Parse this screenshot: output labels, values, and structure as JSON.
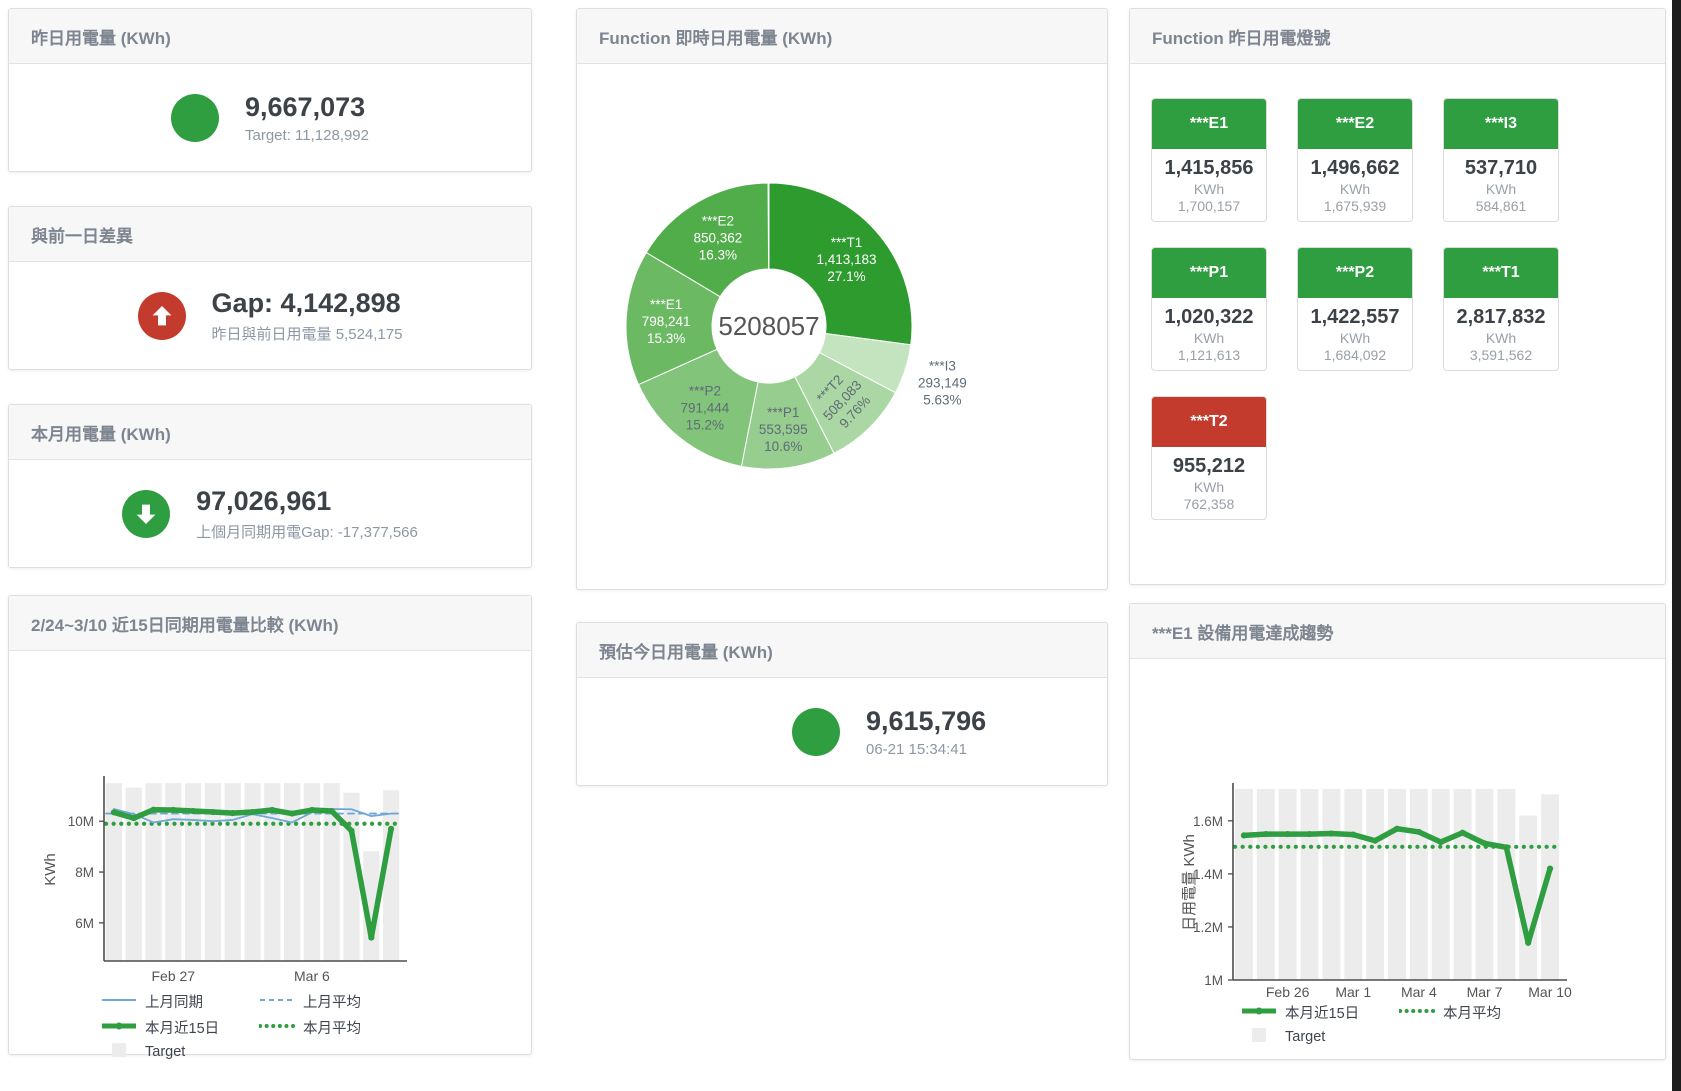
{
  "colors": {
    "green": "#2f9e41",
    "red": "#c23b2c",
    "blue": "#6ea8d8",
    "target_bar": "#ececec",
    "axis": "#4d4d4d",
    "tick_text": "#555555"
  },
  "stat_cards": [
    {
      "title": "昨日用電量 (KWh)",
      "indicator": "circle",
      "indicator_color": "#2f9e41",
      "value": "9,667,073",
      "subtitle": "Target: 11,128,992"
    },
    {
      "title": "與前一日差異",
      "indicator": "arrow-up",
      "indicator_color": "#c23b2c",
      "value": "Gap: 4,142,898",
      "subtitle": "昨日與前日用電量 5,524,175"
    },
    {
      "title": "本月用電量 (KWh)",
      "indicator": "arrow-down",
      "indicator_color": "#2f9e41",
      "value": "97,026,961",
      "subtitle": "上個月同期用電Gap: -17,377,566"
    },
    {
      "title": "預估今日用電量 (KWh)",
      "indicator": "circle",
      "indicator_color": "#2f9e41",
      "value": "9,615,796",
      "subtitle": "06-21 15:34:41"
    }
  ],
  "lights_panel": {
    "title": "Function 昨日用電燈號",
    "unit": "KWh",
    "tiles": [
      {
        "label": "***E1",
        "value": "1,415,856",
        "target": "1,700,157",
        "status_color": "#2f9e41"
      },
      {
        "label": "***E2",
        "value": "1,496,662",
        "target": "1,675,939",
        "status_color": "#2f9e41"
      },
      {
        "label": "***I3",
        "value": "537,710",
        "target": "584,861",
        "status_color": "#2f9e41"
      },
      {
        "label": "***P1",
        "value": "1,020,322",
        "target": "1,121,613",
        "status_color": "#2f9e41"
      },
      {
        "label": "***P2",
        "value": "1,422,557",
        "target": "1,684,092",
        "status_color": "#2f9e41"
      },
      {
        "label": "***T1",
        "value": "2,817,832",
        "target": "3,591,562",
        "status_color": "#2f9e41"
      },
      {
        "label": "***T2",
        "value": "955,212",
        "target": "762,358",
        "status_color": "#c23b2c"
      }
    ]
  },
  "chart_data": [
    {
      "type": "pie",
      "style": "donut",
      "title": "Function 即時日用電量 (KWh)",
      "center_label": "5208057",
      "legend_position": "none",
      "slices": [
        {
          "name": "***T1",
          "value": "1,413,183",
          "pct": 27.1,
          "pct_label": "27.1%",
          "color": "#2e9b2f",
          "label_color": "#ffffff",
          "label_placement": "inside",
          "label_rotate": 0
        },
        {
          "name": "***I3",
          "value": "293,149",
          "pct": 5.63,
          "pct_label": "5.63%",
          "color": "#c3e4bf",
          "label_color": "#5f6b76",
          "label_placement": "outside",
          "label_rotate": 0
        },
        {
          "name": "***T2",
          "value": "508,083",
          "pct": 9.76,
          "pct_label": "9.76%",
          "color": "#abd7a4",
          "label_color": "#5f6b76",
          "label_placement": "inside",
          "label_rotate": -47
        },
        {
          "name": "***P1",
          "value": "553,595",
          "pct": 10.6,
          "pct_label": "10.6%",
          "color": "#97cd8f",
          "label_color": "#5f6b76",
          "label_placement": "inside",
          "label_rotate": 0
        },
        {
          "name": "***P2",
          "value": "791,444",
          "pct": 15.2,
          "pct_label": "15.2%",
          "color": "#83c47b",
          "label_color": "#5f6b76",
          "label_placement": "inside",
          "label_rotate": 0
        },
        {
          "name": "***E1",
          "value": "798,241",
          "pct": 15.3,
          "pct_label": "15.3%",
          "color": "#6cb964",
          "label_color": "#ffffff",
          "label_placement": "inside",
          "label_rotate": 0
        },
        {
          "name": "***E2",
          "value": "850,362",
          "pct": 16.3,
          "pct_label": "16.3%",
          "color": "#51ad4a",
          "label_color": "#ffffff",
          "label_placement": "inside",
          "label_rotate": 0
        }
      ]
    },
    {
      "type": "line",
      "title": "2/24~3/10 近15日同期用電量比較 (KWh)",
      "ylabel": "KWh",
      "unit": "millions KWh",
      "x_range": "2/24 – 3/10 (15 days)",
      "ylim": [
        4.5,
        11.7
      ],
      "grid": false,
      "yticks": [
        {
          "v": 6,
          "label": "6M"
        },
        {
          "v": 8,
          "label": "8M"
        },
        {
          "v": 10,
          "label": "10M"
        }
      ],
      "xticks": [
        {
          "i": 3,
          "label": "Feb 27"
        },
        {
          "i": 10,
          "label": "Mar 6"
        }
      ],
      "target_bars": [
        11.5,
        11.32,
        11.5,
        11.5,
        11.5,
        11.5,
        11.5,
        11.5,
        11.5,
        11.5,
        11.5,
        11.5,
        11.12,
        8.82,
        11.22
      ],
      "series": [
        {
          "name": "上月同期",
          "style": "thin",
          "color": "#6ea8d8",
          "values": [
            10.48,
            10.28,
            9.95,
            10.08,
            10.05,
            10.0,
            10.05,
            10.28,
            10.12,
            9.95,
            10.35,
            10.48,
            10.47,
            10.2,
            10.3
          ]
        },
        {
          "name": "上月平均",
          "style": "dashed",
          "color": "#6ea8d8",
          "avg": 10.3
        },
        {
          "name": "本月近15日",
          "style": "thick",
          "color": "#2f9e41",
          "values": [
            10.35,
            10.12,
            10.45,
            10.44,
            10.4,
            10.36,
            10.32,
            10.36,
            10.44,
            10.3,
            10.44,
            10.4,
            9.62,
            5.42,
            9.7
          ]
        },
        {
          "name": "本月平均",
          "style": "dotted",
          "color": "#2f9e41",
          "avg": 9.9
        }
      ],
      "legend": [
        {
          "label": "上月同期",
          "swatch": "thin",
          "color": "#6ea8d8"
        },
        {
          "label": "上月平均",
          "swatch": "dashed",
          "color": "#6ea8d8"
        },
        {
          "label": "本月近15日",
          "swatch": "thick",
          "color": "#2f9e41"
        },
        {
          "label": "本月平均",
          "swatch": "dotted",
          "color": "#2f9e41"
        },
        {
          "label": "Target",
          "swatch": "box",
          "color": "#ececec"
        }
      ]
    },
    {
      "type": "line",
      "title": "***E1 設備用電達成趨勢",
      "ylabel": "日用電量 KWh",
      "unit": "millions KWh",
      "x_range": "2/24 – 3/10 (15 days)",
      "ylim": [
        1.0,
        1.735
      ],
      "grid": false,
      "yticks": [
        {
          "v": 1,
          "label": "1M"
        },
        {
          "v": 1.2,
          "label": "1.2M"
        },
        {
          "v": 1.4,
          "label": "1.4M"
        },
        {
          "v": 1.6,
          "label": "1.6M"
        }
      ],
      "xticks": [
        {
          "i": 2,
          "label": "Feb 26"
        },
        {
          "i": 5,
          "label": "Mar 1"
        },
        {
          "i": 8,
          "label": "Mar 4"
        },
        {
          "i": 11,
          "label": "Mar 7"
        },
        {
          "i": 14,
          "label": "Mar 10"
        }
      ],
      "target_bars": [
        1.72,
        1.72,
        1.72,
        1.72,
        1.72,
        1.72,
        1.72,
        1.72,
        1.72,
        1.72,
        1.72,
        1.72,
        1.72,
        1.62,
        1.7
      ],
      "series": [
        {
          "name": "本月近15日",
          "style": "thick",
          "color": "#2f9e41",
          "values": [
            1.545,
            1.55,
            1.55,
            1.55,
            1.552,
            1.548,
            1.525,
            1.57,
            1.558,
            1.52,
            1.555,
            1.515,
            1.5,
            1.14,
            1.42
          ]
        },
        {
          "name": "本月平均",
          "style": "dotted",
          "color": "#2f9e41",
          "avg": 1.502
        }
      ],
      "legend": [
        {
          "label": "本月近15日",
          "swatch": "thick",
          "color": "#2f9e41"
        },
        {
          "label": "本月平均",
          "swatch": "dotted",
          "color": "#2f9e41"
        },
        {
          "label": "Target",
          "swatch": "box",
          "color": "#ececec"
        }
      ]
    }
  ]
}
